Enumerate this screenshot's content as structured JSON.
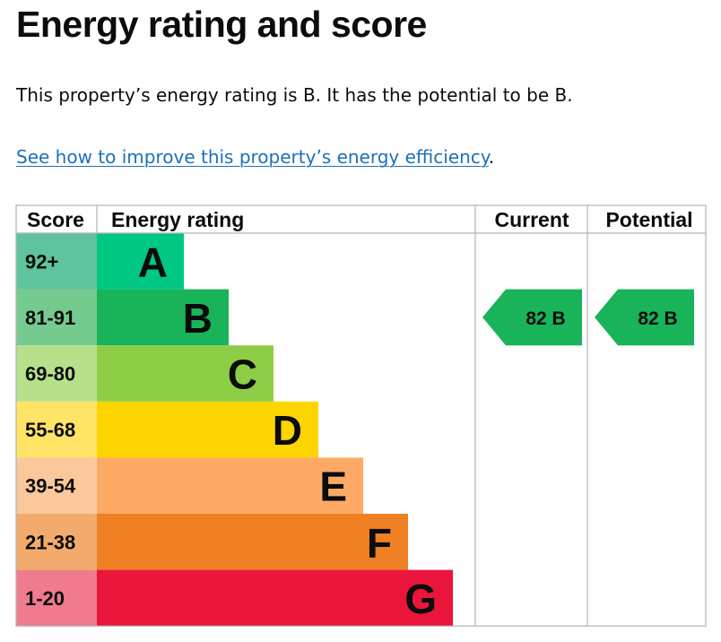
{
  "page": {
    "title": "Energy rating and score",
    "summary": "This property’s energy rating is B. It has the potential to be B.",
    "improve_link": "See how to improve this property’s energy efficiency",
    "improve_suffix": "."
  },
  "chart_data": {
    "type": "bar",
    "headers": {
      "score": "Score",
      "rating": "Energy rating",
      "current": "Current",
      "potential": "Potential"
    },
    "bands": [
      {
        "letter": "A",
        "score": "92+",
        "color": "#008054",
        "score_bg": "#5fc49d"
      },
      {
        "letter": "B",
        "score": "81-91",
        "color": "#19b459",
        "score_bg": "#75cb8f"
      },
      {
        "letter": "C",
        "score": "69-80",
        "color": "#8dce46",
        "score_bg": "#b7e08b"
      },
      {
        "letter": "D",
        "score": "55-68",
        "color": "#ffd500",
        "score_bg": "#ffe466"
      },
      {
        "letter": "E",
        "score": "39-54",
        "color": "#fcaa65",
        "score_bg": "#fbc89c"
      },
      {
        "letter": "F",
        "score": "21-38",
        "color": "#ef8023",
        "score_bg": "#f2ab6c"
      },
      {
        "letter": "G",
        "score": "1-20",
        "color": "#e9153b",
        "score_bg": "#f07a8e"
      }
    ],
    "current": {
      "score": 82,
      "band": "B",
      "label": "82  B"
    },
    "potential": {
      "score": 82,
      "band": "B",
      "label": "82  B"
    },
    "colors": {
      "band_A": "#00c781",
      "grid": "#b1b4b6"
    }
  }
}
